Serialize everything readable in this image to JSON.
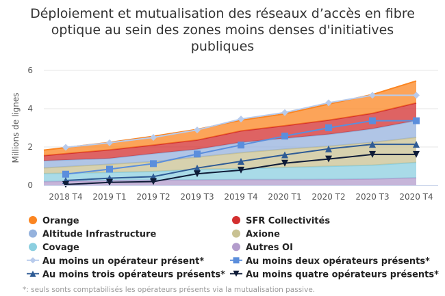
{
  "chart_data": {
    "type": "area",
    "stacked": true,
    "title": [
      "Déploiement et mutualisation des réseaux d’accès en fibre",
      "optique au sein des zones moins denses d'initiatives",
      "publiques"
    ],
    "ylabel": "Millions de lignes",
    "xlabel": "",
    "ylim": [
      0,
      6
    ],
    "yticks": [
      "0",
      "2",
      "4",
      "6"
    ],
    "grid": true,
    "legend": "bottom",
    "categories": [
      "2018 T4",
      "2019 T1",
      "2019 T2",
      "2019 T3",
      "2019 T4",
      "2020 T1",
      "2020 T2",
      "2020 T3",
      "2020 T4"
    ],
    "area_series": [
      {
        "name": "Autres OI",
        "color": "#b39ccc",
        "values": [
          0.21,
          0.25,
          0.27,
          0.28,
          0.3,
          0.3,
          0.31,
          0.33,
          0.39
        ]
      },
      {
        "name": "Covage",
        "color": "#8ccfe0",
        "values": [
          0.42,
          0.42,
          0.45,
          0.55,
          0.57,
          0.63,
          0.68,
          0.72,
          0.8
        ]
      },
      {
        "name": "Axione",
        "color": "#c9c293",
        "values": [
          0.34,
          0.43,
          0.51,
          0.64,
          0.83,
          0.96,
          1.05,
          1.19,
          1.31
        ]
      },
      {
        "name": "Altitude Infrastructure",
        "color": "#95b2dd",
        "values": [
          0.35,
          0.3,
          0.42,
          0.41,
          0.54,
          0.56,
          0.62,
          0.71,
          0.88
        ]
      },
      {
        "name": "SFR Collectivités",
        "color": "#d32f2f",
        "values": [
          0.33,
          0.45,
          0.45,
          0.48,
          0.6,
          0.66,
          0.74,
          0.81,
          0.92
        ]
      },
      {
        "name": "Orange",
        "color": "#fb8521",
        "values": [
          0.32,
          0.39,
          0.46,
          0.56,
          0.56,
          0.62,
          0.84,
          0.98,
          1.15
        ]
      }
    ],
    "line_series": [
      {
        "name": "Au moins un opérateur présent*",
        "color": "#b8cbec",
        "marker": "diamond",
        "values": [
          1.98,
          2.22,
          2.5,
          2.89,
          3.46,
          3.8,
          4.31,
          4.7,
          4.7
        ]
      },
      {
        "name": "Au moins deux opérateurs présents*",
        "color": "#5b8edc",
        "marker": "square",
        "values": [
          0.58,
          0.84,
          1.13,
          1.63,
          2.1,
          2.57,
          3.0,
          3.37,
          3.37
        ]
      },
      {
        "name": "Au moins trois opérateurs présents*",
        "color": "#2f5b95",
        "marker": "triangle",
        "values": [
          0.25,
          0.37,
          0.45,
          0.9,
          1.25,
          1.59,
          1.9,
          2.14,
          2.14
        ]
      },
      {
        "name": "Au moins quatre opérateurs présents*",
        "color": "#0f1c38",
        "marker": "triangle-down",
        "values": [
          0.04,
          0.15,
          0.19,
          0.6,
          0.79,
          1.15,
          1.37,
          1.61,
          1.61
        ]
      }
    ],
    "legend_order": [
      "Orange",
      "SFR Collectivités",
      "Altitude Infrastructure",
      "Axione",
      "Covage",
      "Autres OI",
      "Au moins un opérateur présent*",
      "Au moins deux opérateurs présents*",
      "Au moins trois opérateurs présents*",
      "Au moins quatre opérateurs présents*"
    ],
    "footnote": "*: seuls sonts comptabilisés les opérateurs présents via la mutualisation passive."
  }
}
